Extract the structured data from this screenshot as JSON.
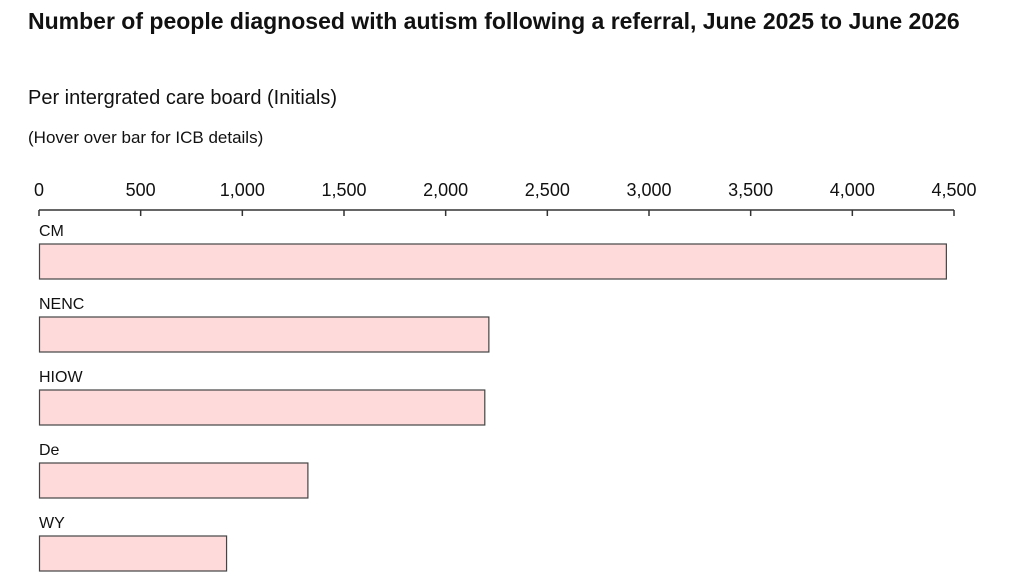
{
  "header": {
    "title": "Number of people diagnosed with autism following a referral, June 2025 to June 2026",
    "subtitle": "Per intergrated care board (Initials)",
    "note": "(Hover over bar for ICB details)"
  },
  "colors": {
    "bar_fill": "#ffdada",
    "bar_stroke": "#444444",
    "axis": "#333333"
  },
  "chart_data": {
    "type": "bar",
    "orientation": "horizontal",
    "categories": [
      "CM",
      "NENC",
      "HIOW",
      "De",
      "WY"
    ],
    "values": [
      4460,
      2210,
      2190,
      1320,
      920
    ],
    "xlim": [
      0,
      4500
    ],
    "x_ticks": [
      0,
      500,
      1000,
      1500,
      2000,
      2500,
      3000,
      3500,
      4000,
      4500
    ],
    "x_tick_labels": [
      "0",
      "500",
      "1,000",
      "1,500",
      "2,000",
      "2,500",
      "3,000",
      "3,500",
      "4,000",
      "4,500"
    ],
    "axis_position": "top",
    "grid": false,
    "legend": "none"
  }
}
